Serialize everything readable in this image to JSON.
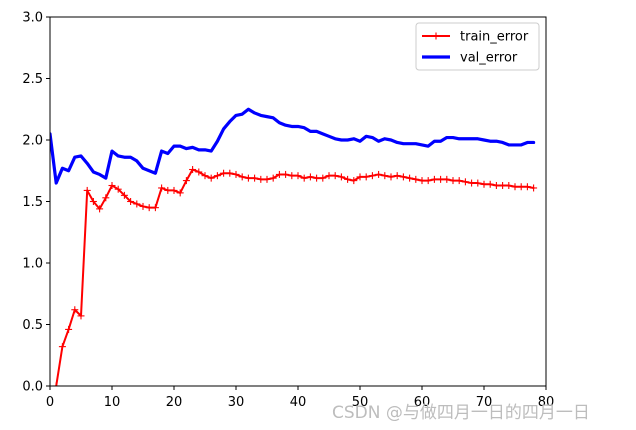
{
  "chart_data": {
    "type": "line",
    "title": "",
    "xlabel": "",
    "ylabel": "",
    "xlim": [
      0,
      80
    ],
    "ylim": [
      0,
      3.0
    ],
    "x_ticks": [
      0,
      10,
      20,
      30,
      40,
      50,
      60,
      70,
      80
    ],
    "y_ticks": [
      "0.0",
      "0.5",
      "1.0",
      "1.5",
      "2.0",
      "2.5",
      "3.0"
    ],
    "legend_position": "top-right",
    "series": [
      {
        "name": "train_error",
        "color": "#ff0000",
        "marker": "+",
        "x": [
          1,
          2,
          3,
          4,
          5,
          6,
          7,
          8,
          9,
          10,
          11,
          12,
          13,
          14,
          15,
          16,
          17,
          18,
          19,
          20,
          21,
          22,
          23,
          24,
          25,
          26,
          27,
          28,
          29,
          30,
          31,
          32,
          33,
          34,
          35,
          36,
          37,
          38,
          39,
          40,
          41,
          42,
          43,
          44,
          45,
          46,
          47,
          48,
          49,
          50,
          51,
          52,
          53,
          54,
          55,
          56,
          57,
          58,
          59,
          60,
          61,
          62,
          63,
          64,
          65,
          66,
          67,
          68,
          69,
          70,
          71,
          72,
          73,
          74,
          75,
          76,
          77,
          78
        ],
        "values": [
          0.0,
          0.32,
          0.46,
          0.62,
          0.57,
          1.59,
          1.5,
          1.44,
          1.53,
          1.63,
          1.6,
          1.55,
          1.5,
          1.48,
          1.46,
          1.45,
          1.45,
          1.61,
          1.59,
          1.59,
          1.57,
          1.67,
          1.76,
          1.74,
          1.71,
          1.69,
          1.71,
          1.73,
          1.73,
          1.72,
          1.7,
          1.69,
          1.69,
          1.68,
          1.68,
          1.69,
          1.72,
          1.72,
          1.71,
          1.71,
          1.69,
          1.7,
          1.69,
          1.69,
          1.71,
          1.71,
          1.7,
          1.68,
          1.67,
          1.7,
          1.7,
          1.71,
          1.72,
          1.71,
          1.7,
          1.71,
          1.7,
          1.69,
          1.68,
          1.67,
          1.67,
          1.68,
          1.68,
          1.68,
          1.67,
          1.67,
          1.66,
          1.65,
          1.65,
          1.64,
          1.64,
          1.63,
          1.63,
          1.63,
          1.62,
          1.62,
          1.62,
          1.61
        ]
      },
      {
        "name": "val_error",
        "color": "#0000ff",
        "marker": "",
        "x": [
          0,
          1,
          2,
          3,
          4,
          5,
          6,
          7,
          8,
          9,
          10,
          11,
          12,
          13,
          14,
          15,
          16,
          17,
          18,
          19,
          20,
          21,
          22,
          23,
          24,
          25,
          26,
          27,
          28,
          29,
          30,
          31,
          32,
          33,
          34,
          35,
          36,
          37,
          38,
          39,
          40,
          41,
          42,
          43,
          44,
          45,
          46,
          47,
          48,
          49,
          50,
          51,
          52,
          53,
          54,
          55,
          56,
          57,
          58,
          59,
          60,
          61,
          62,
          63,
          64,
          65,
          66,
          67,
          68,
          69,
          70,
          71,
          72,
          73,
          74,
          75,
          76,
          77,
          78
        ],
        "values": [
          2.05,
          1.65,
          1.77,
          1.75,
          1.86,
          1.87,
          1.81,
          1.74,
          1.72,
          1.69,
          1.91,
          1.87,
          1.86,
          1.86,
          1.83,
          1.77,
          1.75,
          1.73,
          1.91,
          1.89,
          1.95,
          1.95,
          1.93,
          1.94,
          1.92,
          1.92,
          1.91,
          1.99,
          2.09,
          2.15,
          2.2,
          2.21,
          2.25,
          2.22,
          2.2,
          2.19,
          2.18,
          2.14,
          2.12,
          2.11,
          2.11,
          2.1,
          2.07,
          2.07,
          2.05,
          2.03,
          2.01,
          2.0,
          2.0,
          2.01,
          1.99,
          2.03,
          2.02,
          1.99,
          2.01,
          2.0,
          1.98,
          1.97,
          1.97,
          1.97,
          1.96,
          1.95,
          1.99,
          1.99,
          2.02,
          2.02,
          2.01,
          2.01,
          2.01,
          2.01,
          2.0,
          1.99,
          1.99,
          1.98,
          1.96,
          1.96,
          1.96,
          1.98,
          1.98
        ]
      }
    ]
  },
  "watermark": "CSDN @与做四月一日的四月一日"
}
